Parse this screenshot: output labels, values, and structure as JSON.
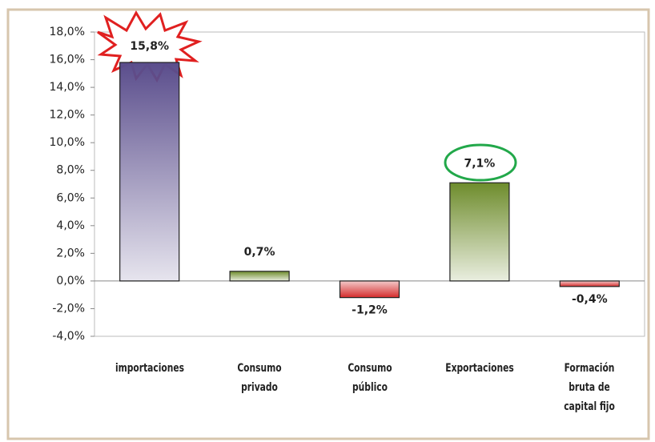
{
  "chart_data": {
    "type": "bar",
    "categories": [
      "importaciones",
      "Consumo privado",
      "Consumo público",
      "Exportaciones",
      "Formación bruta de capital fijo"
    ],
    "values": [
      15.8,
      0.7,
      -1.2,
      7.1,
      -0.4
    ],
    "value_labels": [
      "15,8%",
      "0,7%",
      "-1,2%",
      "7,1%",
      "-0,4%"
    ],
    "colors": [
      "#5a4d8c",
      "#6e8c2c",
      "#d42a2a",
      "#6e8c2c",
      "#d42a2a"
    ],
    "ylim": [
      -4,
      18
    ],
    "yticks": [
      {
        "value": -4,
        "label": "-4,0%"
      },
      {
        "value": -2,
        "label": "-2,0%"
      },
      {
        "value": 0,
        "label": "0,0%"
      },
      {
        "value": 2,
        "label": "2,0%"
      },
      {
        "value": 4,
        "label": "4,0%"
      },
      {
        "value": 6,
        "label": "6,0%"
      },
      {
        "value": 8,
        "label": "8,0%"
      },
      {
        "value": 10,
        "label": "10,0%"
      },
      {
        "value": 12,
        "label": "12,0%"
      },
      {
        "value": 14,
        "label": "14,0%"
      },
      {
        "value": 16,
        "label": "16,0%"
      },
      {
        "value": 18,
        "label": "18,0%"
      }
    ],
    "grid": false
  }
}
